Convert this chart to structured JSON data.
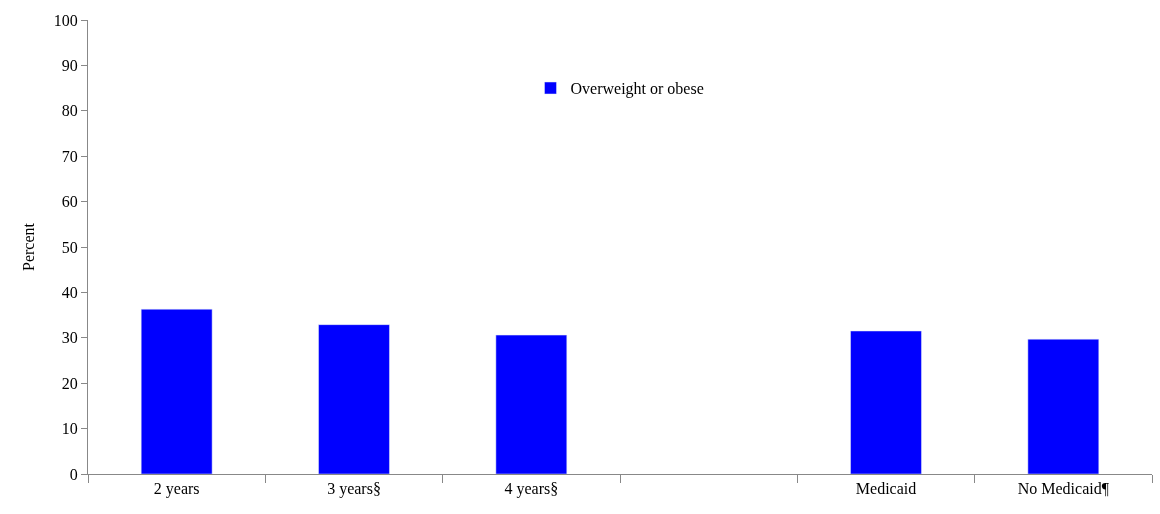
{
  "chart_data": {
    "type": "bar",
    "ylabel": "Percent",
    "categories": [
      "2 years",
      "3 years§",
      "4 years§",
      null,
      "Medicaid",
      "No Medicaid¶"
    ],
    "series": [
      {
        "name": "Overweight or obese",
        "color": "#0000ff",
        "values": [
          36.3,
          32.9,
          30.6,
          null,
          31.5,
          29.7
        ]
      }
    ],
    "ylim": [
      0,
      100
    ],
    "yticks": [
      0,
      10,
      20,
      30,
      40,
      50,
      60,
      70,
      80,
      90,
      100
    ],
    "legend": "top"
  }
}
